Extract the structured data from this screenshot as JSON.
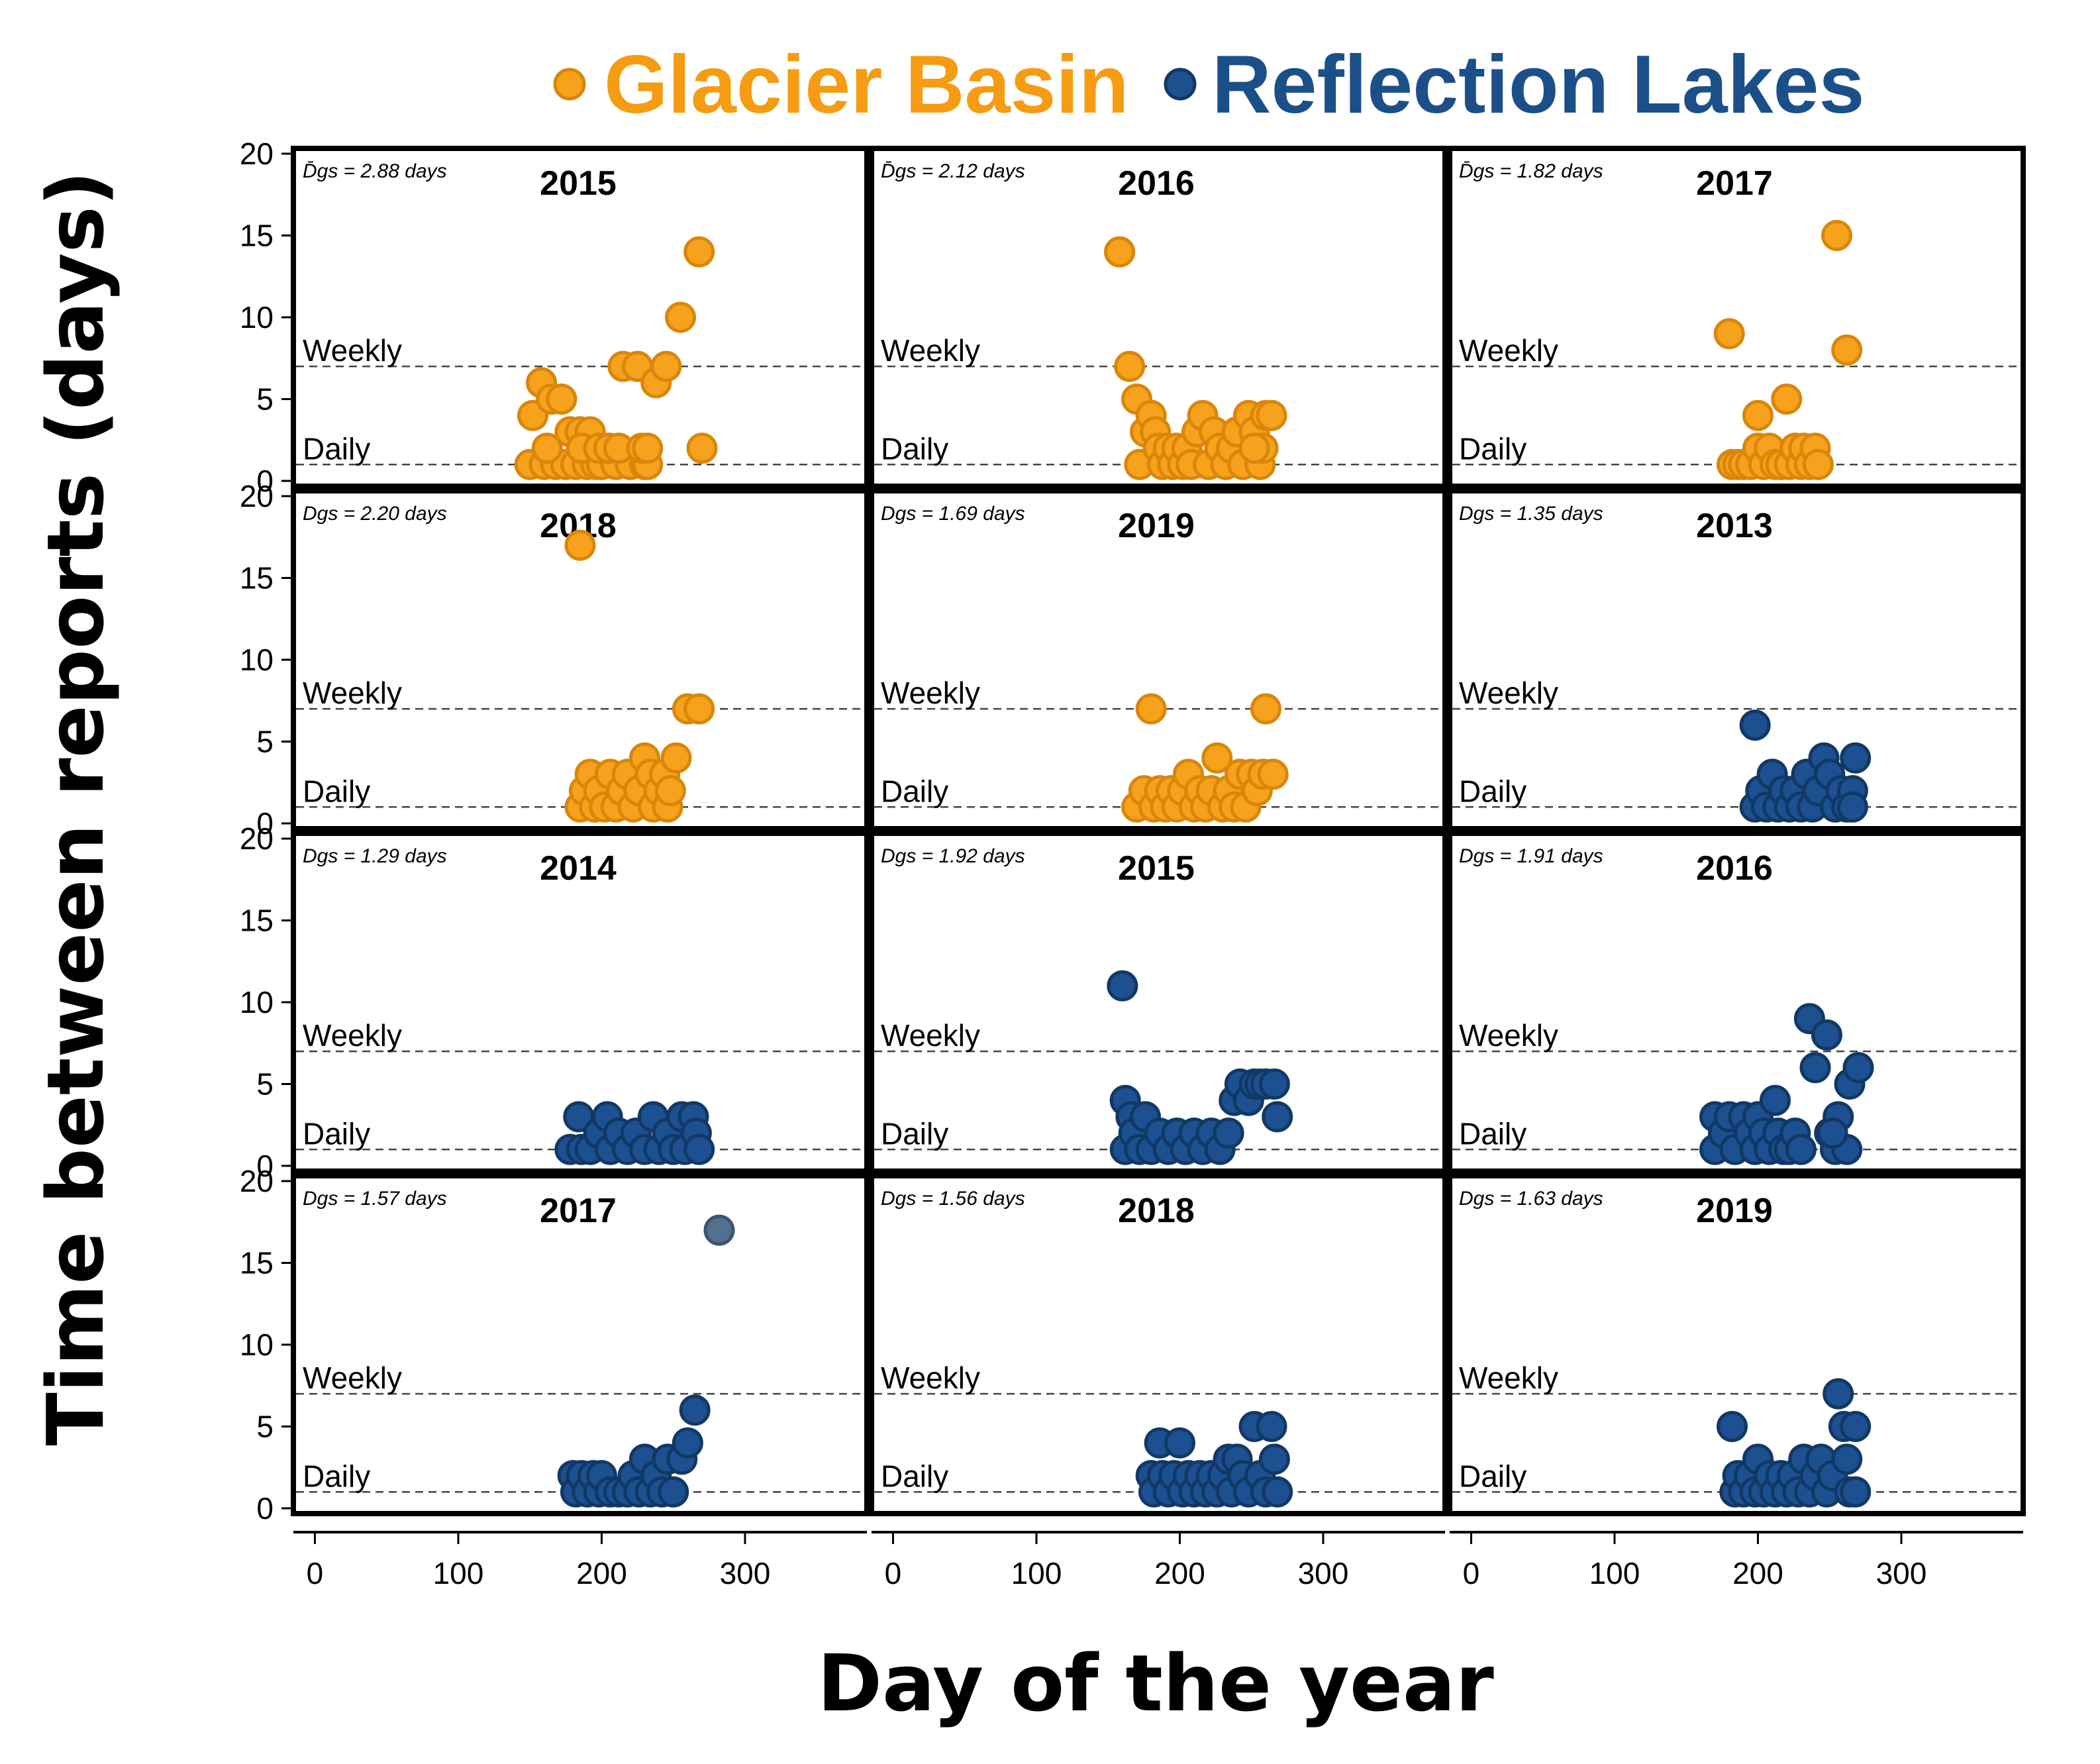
{
  "legend": [
    {
      "name": "Glacier Basin",
      "color": "#f59c12"
    },
    {
      "name": "Reflection Lakes",
      "color": "#1b4f8a"
    }
  ],
  "colors": {
    "glacier_fill": "#f7a21c",
    "glacier_stroke": "#d9860a",
    "reflection_fill": "#1d5090",
    "reflection_stroke": "#113866",
    "outlier_fill": "#52708f"
  },
  "axes": {
    "ylabel": "Time between reports (days)",
    "xlabel": "Day of the year",
    "y_ticks": [
      "0",
      "5",
      "10",
      "15",
      "20"
    ],
    "x_ticks": [
      "0",
      "100",
      "200",
      "300"
    ],
    "ylim": [
      0,
      20
    ],
    "xlim": [
      -15,
      385
    ],
    "weekly_label": "Weekly",
    "daily_label": "Daily",
    "weekly_value": 7,
    "daily_value": 1
  },
  "chart_data": [
    {
      "type": "scatter",
      "site": "Glacier Basin",
      "year": "2015",
      "dgs": "D̄gs = 2.88 days",
      "points": [
        [
          150,
          1
        ],
        [
          160,
          1
        ],
        [
          168,
          1
        ],
        [
          175,
          1
        ],
        [
          182,
          1
        ],
        [
          190,
          1
        ],
        [
          196,
          1
        ],
        [
          200,
          1
        ],
        [
          210,
          1
        ],
        [
          220,
          1
        ],
        [
          230,
          1
        ],
        [
          232,
          1
        ],
        [
          152,
          4
        ],
        [
          158,
          6
        ],
        [
          165,
          5
        ],
        [
          172,
          5
        ],
        [
          162,
          2
        ],
        [
          178,
          3
        ],
        [
          185,
          3
        ],
        [
          192,
          3
        ],
        [
          186,
          2
        ],
        [
          198,
          2
        ],
        [
          205,
          2
        ],
        [
          212,
          2
        ],
        [
          215,
          7
        ],
        [
          225,
          7
        ],
        [
          228,
          2
        ],
        [
          232,
          2
        ],
        [
          238,
          6
        ],
        [
          245,
          7
        ],
        [
          255,
          10
        ],
        [
          268,
          14
        ],
        [
          270,
          2
        ]
      ]
    },
    {
      "type": "scatter",
      "site": "Glacier Basin",
      "year": "2016",
      "dgs": "D̄gs = 2.12 days",
      "points": [
        [
          158,
          14
        ],
        [
          165,
          7
        ],
        [
          170,
          5
        ],
        [
          172,
          1
        ],
        [
          176,
          3
        ],
        [
          180,
          4
        ],
        [
          183,
          3
        ],
        [
          185,
          2
        ],
        [
          188,
          1
        ],
        [
          192,
          2
        ],
        [
          195,
          1
        ],
        [
          198,
          2
        ],
        [
          202,
          1
        ],
        [
          205,
          2
        ],
        [
          208,
          1
        ],
        [
          212,
          3
        ],
        [
          216,
          4
        ],
        [
          220,
          1
        ],
        [
          224,
          3
        ],
        [
          228,
          2
        ],
        [
          232,
          1
        ],
        [
          236,
          2
        ],
        [
          240,
          3
        ],
        [
          244,
          1
        ],
        [
          248,
          4
        ],
        [
          252,
          3
        ],
        [
          256,
          1
        ],
        [
          260,
          4
        ],
        [
          264,
          4
        ],
        [
          258,
          2
        ],
        [
          252,
          2
        ]
      ]
    },
    {
      "type": "scatter",
      "site": "Glacier Basin",
      "year": "2017",
      "dgs": "D̄gs = 1.82  days",
      "points": [
        [
          180,
          9
        ],
        [
          182,
          1
        ],
        [
          186,
          1
        ],
        [
          190,
          1
        ],
        [
          195,
          1
        ],
        [
          200,
          4
        ],
        [
          200,
          2
        ],
        [
          204,
          1
        ],
        [
          208,
          2
        ],
        [
          212,
          1
        ],
        [
          216,
          1
        ],
        [
          220,
          5
        ],
        [
          222,
          1
        ],
        [
          226,
          2
        ],
        [
          230,
          1
        ],
        [
          232,
          2
        ],
        [
          236,
          1
        ],
        [
          240,
          2
        ],
        [
          242,
          1
        ],
        [
          255,
          15
        ],
        [
          262,
          8
        ]
      ]
    },
    {
      "type": "scatter",
      "site": "Glacier Basin",
      "year": "2018",
      "dgs": "Dgs = 2.20 days",
      "points": [
        [
          185,
          17
        ],
        [
          185,
          1
        ],
        [
          188,
          2
        ],
        [
          192,
          3
        ],
        [
          195,
          1
        ],
        [
          198,
          2
        ],
        [
          202,
          1
        ],
        [
          206,
          3
        ],
        [
          210,
          1
        ],
        [
          214,
          2
        ],
        [
          218,
          3
        ],
        [
          222,
          1
        ],
        [
          226,
          2
        ],
        [
          230,
          4
        ],
        [
          234,
          3
        ],
        [
          236,
          1
        ],
        [
          240,
          2
        ],
        [
          244,
          3
        ],
        [
          246,
          1
        ],
        [
          248,
          2
        ],
        [
          252,
          4
        ],
        [
          260,
          7
        ],
        [
          268,
          7
        ]
      ]
    },
    {
      "type": "scatter",
      "site": "Glacier Basin",
      "year": "2019",
      "dgs": "Dgs = 1.69 days",
      "points": [
        [
          170,
          1
        ],
        [
          175,
          2
        ],
        [
          180,
          7
        ],
        [
          182,
          1
        ],
        [
          186,
          2
        ],
        [
          190,
          1
        ],
        [
          194,
          2
        ],
        [
          198,
          1
        ],
        [
          202,
          2
        ],
        [
          206,
          3
        ],
        [
          210,
          1
        ],
        [
          214,
          2
        ],
        [
          218,
          1
        ],
        [
          222,
          2
        ],
        [
          226,
          4
        ],
        [
          230,
          1
        ],
        [
          234,
          2
        ],
        [
          238,
          1
        ],
        [
          242,
          3
        ],
        [
          246,
          1
        ],
        [
          250,
          3
        ],
        [
          254,
          2
        ],
        [
          258,
          3
        ],
        [
          260,
          7
        ],
        [
          265,
          3
        ]
      ]
    },
    {
      "type": "scatter",
      "site": "Reflection Lakes",
      "year": "2013",
      "dgs": "Dgs = 1.35  days",
      "points": [
        [
          198,
          6
        ],
        [
          198,
          1
        ],
        [
          202,
          2
        ],
        [
          206,
          1
        ],
        [
          210,
          3
        ],
        [
          214,
          1
        ],
        [
          218,
          2
        ],
        [
          222,
          1
        ],
        [
          226,
          2
        ],
        [
          230,
          1
        ],
        [
          234,
          3
        ],
        [
          238,
          1
        ],
        [
          242,
          2
        ],
        [
          246,
          4
        ],
        [
          250,
          3
        ],
        [
          254,
          1
        ],
        [
          258,
          2
        ],
        [
          262,
          1
        ],
        [
          266,
          2
        ],
        [
          268,
          4
        ],
        [
          266,
          1
        ]
      ]
    },
    {
      "type": "scatter",
      "site": "Reflection Lakes",
      "year": "2014",
      "dgs": "Dgs = 1.29 days",
      "points": [
        [
          178,
          1
        ],
        [
          184,
          3
        ],
        [
          186,
          1
        ],
        [
          192,
          1
        ],
        [
          198,
          2
        ],
        [
          204,
          3
        ],
        [
          206,
          1
        ],
        [
          212,
          2
        ],
        [
          218,
          1
        ],
        [
          224,
          2
        ],
        [
          230,
          1
        ],
        [
          236,
          3
        ],
        [
          240,
          1
        ],
        [
          246,
          2
        ],
        [
          250,
          1
        ],
        [
          256,
          3
        ],
        [
          258,
          1
        ],
        [
          264,
          3
        ],
        [
          266,
          2
        ],
        [
          268,
          1
        ]
      ]
    },
    {
      "type": "scatter",
      "site": "Reflection Lakes",
      "year": "2015",
      "dgs": "Dgs = 1.92 days",
      "points": [
        [
          160,
          11
        ],
        [
          162,
          4
        ],
        [
          166,
          3
        ],
        [
          162,
          1
        ],
        [
          168,
          2
        ],
        [
          172,
          1
        ],
        [
          176,
          3
        ],
        [
          180,
          1
        ],
        [
          186,
          2
        ],
        [
          192,
          1
        ],
        [
          198,
          2
        ],
        [
          204,
          1
        ],
        [
          210,
          2
        ],
        [
          216,
          1
        ],
        [
          222,
          2
        ],
        [
          228,
          1
        ],
        [
          234,
          2
        ],
        [
          238,
          4
        ],
        [
          242,
          5
        ],
        [
          248,
          4
        ],
        [
          252,
          5
        ],
        [
          256,
          5
        ],
        [
          260,
          5
        ],
        [
          266,
          5
        ],
        [
          268,
          3
        ]
      ]
    },
    {
      "type": "scatter",
      "site": "Reflection Lakes",
      "year": "2016",
      "dgs": "Dgs = 1.91 days",
      "points": [
        [
          170,
          3
        ],
        [
          170,
          1
        ],
        [
          176,
          2
        ],
        [
          180,
          3
        ],
        [
          184,
          1
        ],
        [
          190,
          3
        ],
        [
          194,
          2
        ],
        [
          198,
          1
        ],
        [
          200,
          3
        ],
        [
          204,
          2
        ],
        [
          208,
          1
        ],
        [
          212,
          4
        ],
        [
          214,
          2
        ],
        [
          218,
          1
        ],
        [
          222,
          1
        ],
        [
          226,
          2
        ],
        [
          230,
          1
        ],
        [
          236,
          9
        ],
        [
          240,
          6
        ],
        [
          248,
          8
        ],
        [
          250,
          2
        ],
        [
          254,
          1
        ],
        [
          256,
          3
        ],
        [
          262,
          1
        ],
        [
          264,
          5
        ],
        [
          270,
          6
        ],
        [
          252,
          2
        ]
      ]
    },
    {
      "type": "scatter",
      "site": "Reflection Lakes",
      "year": "2017",
      "dgs": "Dgs = 1.57 days",
      "points": [
        [
          180,
          2
        ],
        [
          182,
          1
        ],
        [
          186,
          2
        ],
        [
          190,
          1
        ],
        [
          194,
          2
        ],
        [
          198,
          1
        ],
        [
          200,
          2
        ],
        [
          206,
          1
        ],
        [
          212,
          1
        ],
        [
          218,
          1
        ],
        [
          222,
          2
        ],
        [
          226,
          1
        ],
        [
          230,
          3
        ],
        [
          234,
          1
        ],
        [
          238,
          2
        ],
        [
          242,
          1
        ],
        [
          246,
          3
        ],
        [
          250,
          1
        ],
        [
          256,
          3
        ],
        [
          260,
          4
        ],
        [
          265,
          6
        ]
      ],
      "outlier": [
        282,
        17
      ]
    },
    {
      "type": "scatter",
      "site": "Reflection Lakes",
      "year": "2018",
      "dgs": "Dgs = 1.56 days",
      "points": [
        [
          180,
          2
        ],
        [
          182,
          1
        ],
        [
          186,
          4
        ],
        [
          188,
          2
        ],
        [
          192,
          1
        ],
        [
          196,
          2
        ],
        [
          200,
          4
        ],
        [
          202,
          1
        ],
        [
          206,
          2
        ],
        [
          210,
          1
        ],
        [
          214,
          2
        ],
        [
          218,
          1
        ],
        [
          222,
          2
        ],
        [
          226,
          1
        ],
        [
          230,
          2
        ],
        [
          234,
          3
        ],
        [
          236,
          1
        ],
        [
          240,
          3
        ],
        [
          244,
          2
        ],
        [
          248,
          1
        ],
        [
          252,
          5
        ],
        [
          256,
          2
        ],
        [
          260,
          1
        ],
        [
          264,
          5
        ],
        [
          266,
          3
        ],
        [
          268,
          1
        ]
      ]
    },
    {
      "type": "scatter",
      "site": "Reflection Lakes",
      "year": "2019",
      "dgs": "Dgs = 1.63  days",
      "points": [
        [
          182,
          5
        ],
        [
          184,
          1
        ],
        [
          186,
          2
        ],
        [
          190,
          1
        ],
        [
          194,
          2
        ],
        [
          198,
          1
        ],
        [
          200,
          3
        ],
        [
          204,
          1
        ],
        [
          208,
          2
        ],
        [
          212,
          1
        ],
        [
          216,
          2
        ],
        [
          220,
          1
        ],
        [
          224,
          2
        ],
        [
          228,
          1
        ],
        [
          232,
          3
        ],
        [
          236,
          1
        ],
        [
          240,
          2
        ],
        [
          244,
          3
        ],
        [
          248,
          1
        ],
        [
          252,
          2
        ],
        [
          256,
          7
        ],
        [
          260,
          5
        ],
        [
          262,
          3
        ],
        [
          264,
          1
        ],
        [
          268,
          5
        ],
        [
          268,
          1
        ]
      ]
    }
  ]
}
